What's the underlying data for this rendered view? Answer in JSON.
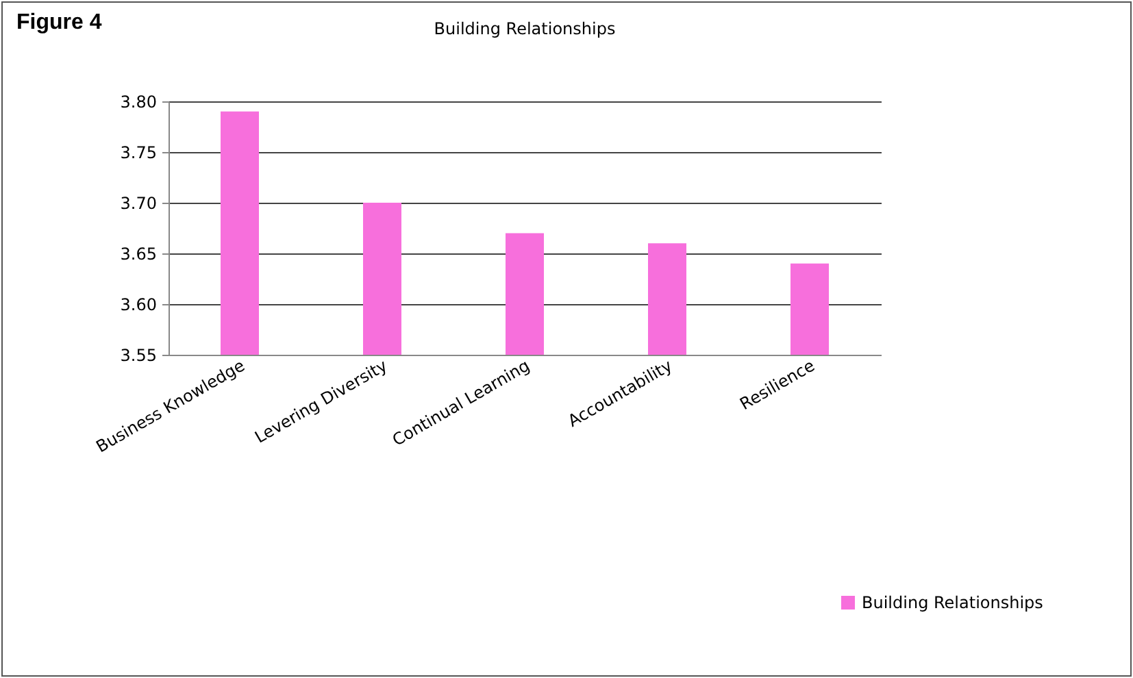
{
  "chart_data": {
    "type": "bar",
    "title": "Building Relationships",
    "annotations": [
      "Figure 4"
    ],
    "categories": [
      "Business Knowledge",
      "Levering Diversity",
      "Continual Learning",
      "Accountability",
      "Resilience"
    ],
    "series": [
      {
        "name": "Building Relationships",
        "color": "#f76fdc",
        "values": [
          3.79,
          3.7,
          3.67,
          3.66,
          3.64
        ]
      }
    ],
    "ylim": [
      3.55,
      3.8
    ],
    "yticks": [
      {
        "value": 3.55,
        "label": "3.55"
      },
      {
        "value": 3.6,
        "label": "3.60"
      },
      {
        "value": 3.65,
        "label": "3.65"
      },
      {
        "value": 3.7,
        "label": "3.70"
      },
      {
        "value": 3.75,
        "label": "3.75"
      },
      {
        "value": 3.8,
        "label": "3.80"
      }
    ],
    "grid": "y",
    "legend": "bottom right"
  }
}
